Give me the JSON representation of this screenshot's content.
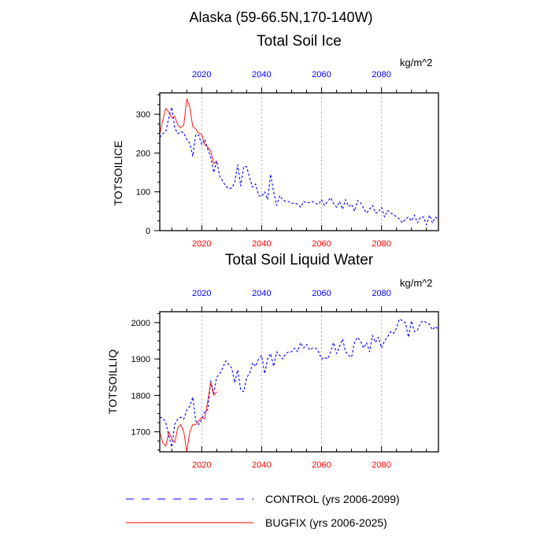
{
  "suptitle": "Alaska (59-66.5N,170-140W)",
  "colors": {
    "control": "#0000ff",
    "bugfix": "#ff0000",
    "axis": "#000000",
    "grid": "#9a9a9a"
  },
  "legend": {
    "control_label": "CONTROL (yrs 2006-2099)",
    "bugfix_label": "BUGFIX (yrs 2006-2025)"
  },
  "chart_data": [
    {
      "type": "line",
      "title": "Total Soil Ice",
      "ylabel": "TOTSOILICE",
      "units": "kg/m^2",
      "xlim": [
        2006,
        2099
      ],
      "ylim": [
        0,
        355
      ],
      "yticks": [
        0,
        100,
        200,
        300
      ],
      "xticks": [
        2020,
        2040,
        2060,
        2080
      ],
      "grid": "vertical dashed at x ticks",
      "series": [
        {
          "name": "CONTROL (yrs 2006-2099)",
          "x": [
            2006,
            2007,
            2008,
            2009,
            2010,
            2011,
            2012,
            2013,
            2014,
            2015,
            2016,
            2017,
            2018,
            2019,
            2020,
            2021,
            2022,
            2023,
            2024,
            2025,
            2026,
            2027,
            2028,
            2029,
            2030,
            2031,
            2032,
            2033,
            2034,
            2035,
            2036,
            2037,
            2038,
            2039,
            2040,
            2041,
            2042,
            2043,
            2044,
            2045,
            2046,
            2047,
            2048,
            2049,
            2050,
            2051,
            2052,
            2053,
            2054,
            2055,
            2056,
            2057,
            2058,
            2059,
            2060,
            2061,
            2062,
            2063,
            2064,
            2065,
            2066,
            2067,
            2068,
            2069,
            2070,
            2071,
            2072,
            2073,
            2074,
            2075,
            2076,
            2077,
            2078,
            2079,
            2080,
            2081,
            2082,
            2083,
            2084,
            2085,
            2086,
            2087,
            2088,
            2089,
            2090,
            2091,
            2092,
            2093,
            2094,
            2095,
            2096,
            2097,
            2098,
            2099
          ],
          "values": [
            240,
            250,
            255,
            290,
            318,
            265,
            250,
            255,
            252,
            235,
            225,
            192,
            248,
            245,
            222,
            235,
            210,
            190,
            150,
            180,
            140,
            128,
            115,
            108,
            110,
            125,
            170,
            115,
            165,
            165,
            135,
            112,
            120,
            90,
            88,
            100,
            80,
            145,
            100,
            65,
            90,
            80,
            75,
            75,
            70,
            72,
            68,
            60,
            75,
            72,
            72,
            75,
            70,
            68,
            80,
            65,
            75,
            85,
            70,
            60,
            75,
            55,
            80,
            62,
            68,
            50,
            78,
            72,
            58,
            45,
            55,
            65,
            45,
            48,
            60,
            35,
            52,
            45,
            42,
            35,
            30,
            20,
            30,
            35,
            25,
            40,
            20,
            35,
            35,
            15,
            40,
            20,
            35,
            28
          ]
        },
        {
          "name": "BUGFIX (yrs 2006-2025)",
          "x": [
            2006,
            2007,
            2008,
            2009,
            2010,
            2011,
            2012,
            2013,
            2014,
            2015,
            2016,
            2017,
            2018,
            2019,
            2020,
            2021,
            2022,
            2023,
            2024,
            2025
          ],
          "values": [
            248,
            285,
            315,
            305,
            290,
            295,
            272,
            265,
            272,
            340,
            318,
            268,
            262,
            250,
            248,
            222,
            215,
            205,
            172,
            180
          ]
        }
      ]
    },
    {
      "type": "line",
      "title": "Total Soil Liquid Water",
      "ylabel": "TOTSOILLIQ",
      "units": "kg/m^2",
      "xlim": [
        2006,
        2099
      ],
      "ylim": [
        1645,
        2030
      ],
      "yticks": [
        1700,
        1800,
        1900,
        2000
      ],
      "xticks": [
        2020,
        2040,
        2060,
        2080
      ],
      "grid": "vertical dashed at x ticks",
      "series": [
        {
          "name": "CONTROL (yrs 2006-2099)",
          "x": [
            2006,
            2007,
            2008,
            2009,
            2010,
            2011,
            2012,
            2013,
            2014,
            2015,
            2016,
            2017,
            2018,
            2019,
            2020,
            2021,
            2022,
            2023,
            2024,
            2025,
            2026,
            2027,
            2028,
            2029,
            2030,
            2031,
            2032,
            2033,
            2034,
            2035,
            2036,
            2037,
            2038,
            2039,
            2040,
            2041,
            2042,
            2043,
            2044,
            2045,
            2046,
            2047,
            2048,
            2049,
            2050,
            2051,
            2052,
            2053,
            2054,
            2055,
            2056,
            2057,
            2058,
            2059,
            2060,
            2061,
            2062,
            2063,
            2064,
            2065,
            2066,
            2067,
            2068,
            2069,
            2070,
            2071,
            2072,
            2073,
            2074,
            2075,
            2076,
            2077,
            2078,
            2079,
            2080,
            2081,
            2082,
            2083,
            2084,
            2085,
            2086,
            2087,
            2088,
            2089,
            2090,
            2091,
            2092,
            2093,
            2094,
            2095,
            2096,
            2097,
            2098,
            2099
          ],
          "values": [
            1740,
            1738,
            1725,
            1690,
            1658,
            1720,
            1735,
            1740,
            1735,
            1760,
            1770,
            1795,
            1730,
            1720,
            1735,
            1755,
            1760,
            1840,
            1805,
            1850,
            1860,
            1875,
            1895,
            1885,
            1875,
            1835,
            1870,
            1815,
            1810,
            1850,
            1860,
            1890,
            1880,
            1900,
            1910,
            1860,
            1900,
            1915,
            1880,
            1920,
            1910,
            1900,
            1915,
            1920,
            1920,
            1930,
            1920,
            1945,
            1930,
            1940,
            1925,
            1930,
            1930,
            1920,
            1900,
            1905,
            1900,
            1920,
            1945,
            1915,
            1935,
            1955,
            1920,
            1910,
            1905,
            1945,
            1960,
            1950,
            1930,
            1945,
            1920,
            1965,
            1945,
            1960,
            1930,
            1950,
            1960,
            1975,
            1970,
            1985,
            2010,
            2005,
            2000,
            1960,
            2005,
            1975,
            1980,
            2000,
            2005,
            2000,
            1995,
            1980,
            1990,
            1980
          ]
        },
        {
          "name": "BUGFIX (yrs 2006-2025)",
          "x": [
            2006,
            2007,
            2008,
            2009,
            2010,
            2011,
            2012,
            2013,
            2014,
            2015,
            2016,
            2017,
            2018,
            2019,
            2020,
            2021,
            2022,
            2023,
            2024,
            2025
          ],
          "values": [
            1700,
            1670,
            1660,
            1700,
            1680,
            1670,
            1710,
            1720,
            1700,
            1645,
            1700,
            1720,
            1720,
            1730,
            1740,
            1735,
            1785,
            1835,
            1800,
            1810
          ]
        }
      ]
    }
  ]
}
